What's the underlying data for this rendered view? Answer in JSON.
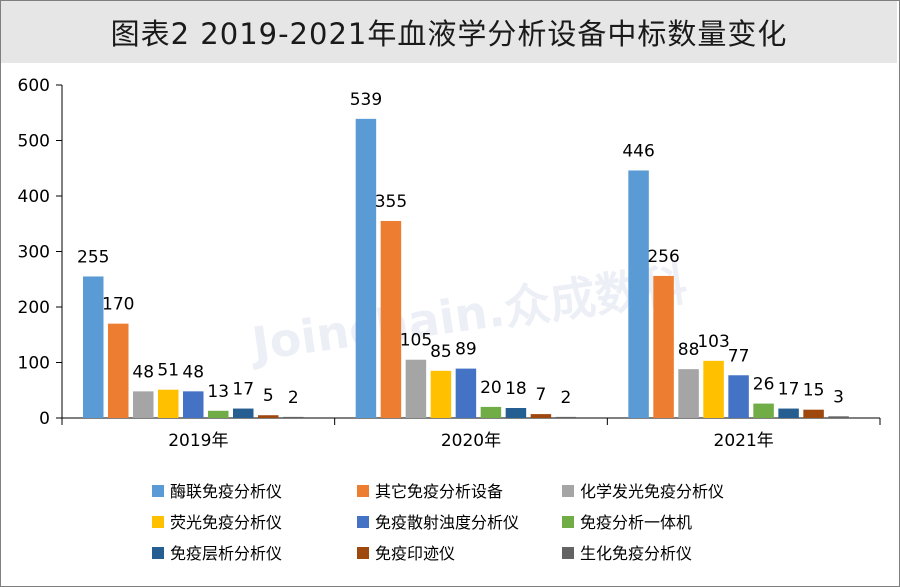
{
  "title": "图表2  2019-2021年血液学分析设备中标数量变化",
  "watermark": "Joinchain.众成数科",
  "chart_data": {
    "type": "bar",
    "title": "图表2  2019-2021年血液学分析设备中标数量变化",
    "categories": [
      "2019年",
      "2020年",
      "2021年"
    ],
    "ylim": [
      0,
      600
    ],
    "yticks": [
      0,
      100,
      200,
      300,
      400,
      500,
      600
    ],
    "grid": false,
    "legend_position": "bottom",
    "series": [
      {
        "name": "酶联免疫分析仪",
        "color": "#5b9bd5",
        "values": [
          255,
          539,
          446
        ]
      },
      {
        "name": "其它免疫分析设备",
        "color": "#ed7d31",
        "values": [
          170,
          355,
          256
        ]
      },
      {
        "name": "化学发光免疫分析仪",
        "color": "#a5a5a5",
        "values": [
          48,
          105,
          88
        ]
      },
      {
        "name": "荧光免疫分析仪",
        "color": "#ffc000",
        "values": [
          51,
          85,
          103
        ]
      },
      {
        "name": "免疫散射浊度分析仪",
        "color": "#4472c4",
        "values": [
          48,
          89,
          77
        ]
      },
      {
        "name": "免疫分析一体机",
        "color": "#70ad47",
        "values": [
          13,
          20,
          26
        ]
      },
      {
        "name": "免疫层析分析仪",
        "color": "#255e91",
        "values": [
          17,
          18,
          17
        ]
      },
      {
        "name": "免疫印迹仪",
        "color": "#9e480e",
        "values": [
          5,
          7,
          15
        ]
      },
      {
        "name": "生化免疫分析仪",
        "color": "#636363",
        "values": [
          2,
          2,
          3
        ]
      }
    ]
  }
}
